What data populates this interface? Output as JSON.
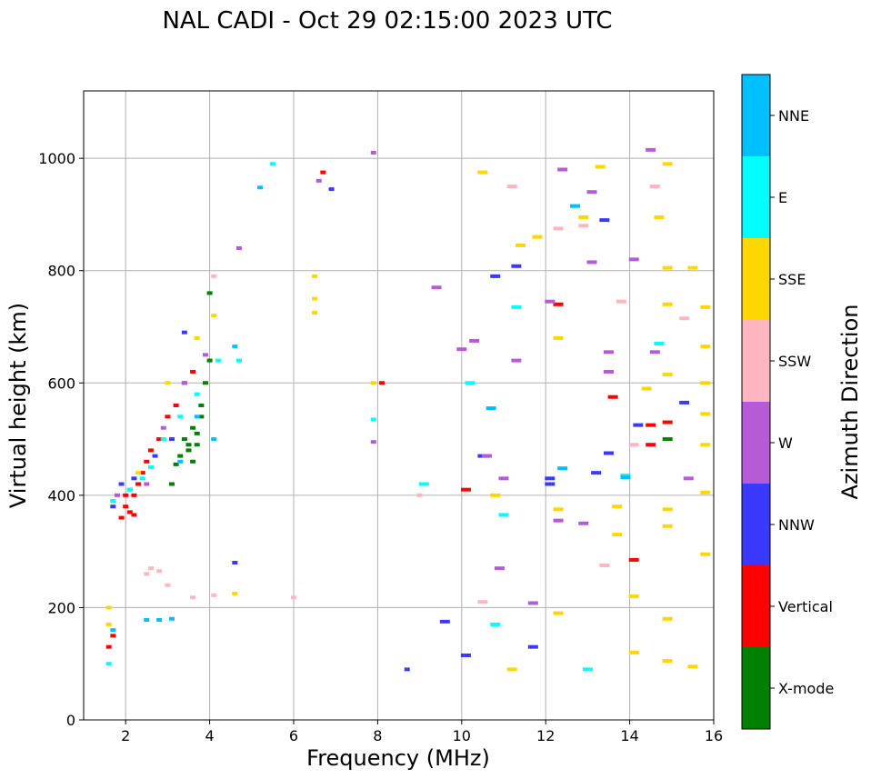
{
  "chart_data": {
    "type": "scatter",
    "title": "NAL CADI - Oct 29 02:15:00 2023 UTC",
    "xlabel": "Frequency (MHz)",
    "ylabel": "Virtual height (km)",
    "xlim": [
      1,
      16
    ],
    "ylim": [
      0,
      1120
    ],
    "xticks": [
      2,
      4,
      6,
      8,
      10,
      12,
      14,
      16
    ],
    "yticks": [
      0,
      200,
      400,
      600,
      800,
      1000
    ],
    "grid": true,
    "colorbar": {
      "label": "Azimuth Direction",
      "categories": [
        {
          "name": "X-mode",
          "color": "#008000"
        },
        {
          "name": "Vertical",
          "color": "#ff0000"
        },
        {
          "name": "NNW",
          "color": "#3a3aff"
        },
        {
          "name": "W",
          "color": "#b65bd6"
        },
        {
          "name": "SSW",
          "color": "#ffb6c1"
        },
        {
          "name": "SSE",
          "color": "#ffd700"
        },
        {
          "name": "E",
          "color": "#00ffff"
        },
        {
          "name": "NNE",
          "color": "#00bfff"
        }
      ]
    },
    "series": [
      {
        "name": "X-mode",
        "points": [
          [
            3.1,
            420
          ],
          [
            3.2,
            455
          ],
          [
            3.3,
            470
          ],
          [
            3.4,
            500
          ],
          [
            3.5,
            480
          ],
          [
            3.6,
            520
          ],
          [
            3.7,
            510
          ],
          [
            3.8,
            560
          ],
          [
            3.9,
            600
          ],
          [
            4.0,
            640
          ],
          [
            4.0,
            760
          ],
          [
            3.8,
            540
          ],
          [
            3.5,
            490
          ],
          [
            3.7,
            490
          ],
          [
            3.6,
            460
          ],
          [
            14.9,
            500
          ]
        ]
      },
      {
        "name": "Vertical",
        "points": [
          [
            1.9,
            360
          ],
          [
            2.0,
            380
          ],
          [
            2.1,
            370
          ],
          [
            2.2,
            400
          ],
          [
            2.3,
            420
          ],
          [
            2.4,
            440
          ],
          [
            2.5,
            460
          ],
          [
            2.6,
            480
          ],
          [
            2.8,
            500
          ],
          [
            3.0,
            540
          ],
          [
            3.2,
            560
          ],
          [
            3.4,
            600
          ],
          [
            3.6,
            620
          ],
          [
            2.0,
            400
          ],
          [
            2.2,
            365
          ],
          [
            1.6,
            130
          ],
          [
            1.7,
            150
          ],
          [
            6.7,
            975
          ],
          [
            8.1,
            600
          ],
          [
            10.1,
            410
          ],
          [
            13.6,
            575
          ],
          [
            14.1,
            285
          ],
          [
            14.5,
            525
          ],
          [
            14.5,
            490
          ],
          [
            14.9,
            530
          ],
          [
            12.3,
            740
          ]
        ]
      },
      {
        "name": "NNW",
        "points": [
          [
            1.7,
            380
          ],
          [
            1.9,
            420
          ],
          [
            2.2,
            430
          ],
          [
            2.7,
            470
          ],
          [
            3.1,
            500
          ],
          [
            3.4,
            690
          ],
          [
            4.6,
            280
          ],
          [
            6.9,
            945
          ],
          [
            8.7,
            90
          ],
          [
            9.6,
            175
          ],
          [
            10.1,
            115
          ],
          [
            10.5,
            470
          ],
          [
            10.8,
            790
          ],
          [
            11.3,
            808
          ],
          [
            11.7,
            130
          ],
          [
            12.1,
            420
          ],
          [
            12.1,
            430
          ],
          [
            13.2,
            440
          ],
          [
            13.4,
            890
          ],
          [
            13.5,
            475
          ],
          [
            14.2,
            525
          ],
          [
            15.3,
            565
          ]
        ]
      },
      {
        "name": "W",
        "points": [
          [
            1.8,
            400
          ],
          [
            2.1,
            410
          ],
          [
            2.5,
            420
          ],
          [
            2.9,
            520
          ],
          [
            3.4,
            600
          ],
          [
            3.9,
            650
          ],
          [
            4.7,
            840
          ],
          [
            6.6,
            960
          ],
          [
            7.9,
            1010
          ],
          [
            7.9,
            495
          ],
          [
            9.4,
            770
          ],
          [
            10.0,
            660
          ],
          [
            10.3,
            675
          ],
          [
            10.6,
            470
          ],
          [
            10.9,
            270
          ],
          [
            11.0,
            430
          ],
          [
            11.3,
            640
          ],
          [
            11.7,
            208
          ],
          [
            12.1,
            745
          ],
          [
            12.3,
            355
          ],
          [
            12.4,
            980
          ],
          [
            12.9,
            350
          ],
          [
            13.1,
            940
          ],
          [
            13.1,
            815
          ],
          [
            13.5,
            655
          ],
          [
            13.5,
            620
          ],
          [
            13.9,
            435
          ],
          [
            14.1,
            820
          ],
          [
            14.5,
            1015
          ],
          [
            14.6,
            655
          ],
          [
            15.4,
            430
          ]
        ]
      },
      {
        "name": "SSW",
        "points": [
          [
            2.5,
            260
          ],
          [
            2.6,
            270
          ],
          [
            2.8,
            265
          ],
          [
            3.0,
            240
          ],
          [
            3.6,
            218
          ],
          [
            4.1,
            222
          ],
          [
            4.1,
            790
          ],
          [
            6.0,
            218
          ],
          [
            9.0,
            400
          ],
          [
            10.5,
            210
          ],
          [
            11.2,
            950
          ],
          [
            12.3,
            875
          ],
          [
            12.9,
            880
          ],
          [
            13.4,
            275
          ],
          [
            13.8,
            745
          ],
          [
            14.1,
            490
          ],
          [
            14.6,
            950
          ],
          [
            15.3,
            715
          ]
        ]
      },
      {
        "name": "SSE",
        "points": [
          [
            1.6,
            200
          ],
          [
            1.6,
            170
          ],
          [
            2.3,
            440
          ],
          [
            3.0,
            600
          ],
          [
            3.7,
            680
          ],
          [
            4.1,
            720
          ],
          [
            4.6,
            225
          ],
          [
            6.5,
            790
          ],
          [
            6.5,
            750
          ],
          [
            6.5,
            725
          ],
          [
            7.9,
            600
          ],
          [
            10.5,
            975
          ],
          [
            10.8,
            400
          ],
          [
            11.2,
            90
          ],
          [
            11.4,
            845
          ],
          [
            11.8,
            860
          ],
          [
            12.3,
            680
          ],
          [
            12.3,
            375
          ],
          [
            12.3,
            190
          ],
          [
            12.9,
            895
          ],
          [
            13.3,
            985
          ],
          [
            13.7,
            380
          ],
          [
            13.7,
            330
          ],
          [
            14.1,
            120
          ],
          [
            14.1,
            220
          ],
          [
            14.4,
            590
          ],
          [
            14.7,
            895
          ],
          [
            14.9,
            990
          ],
          [
            14.9,
            805
          ],
          [
            14.9,
            740
          ],
          [
            14.9,
            615
          ],
          [
            14.9,
            375
          ],
          [
            14.9,
            345
          ],
          [
            14.9,
            180
          ],
          [
            14.9,
            105
          ],
          [
            15.5,
            805
          ],
          [
            15.5,
            95
          ],
          [
            15.8,
            735
          ],
          [
            15.8,
            665
          ],
          [
            15.8,
            600
          ],
          [
            15.8,
            545
          ],
          [
            15.8,
            490
          ],
          [
            15.8,
            405
          ],
          [
            15.8,
            295
          ]
        ]
      },
      {
        "name": "E",
        "points": [
          [
            1.6,
            100
          ],
          [
            1.7,
            390
          ],
          [
            2.1,
            410
          ],
          [
            2.4,
            430
          ],
          [
            2.6,
            450
          ],
          [
            2.9,
            500
          ],
          [
            3.3,
            540
          ],
          [
            3.7,
            580
          ],
          [
            4.2,
            640
          ],
          [
            4.7,
            640
          ],
          [
            5.5,
            990
          ],
          [
            7.9,
            535
          ],
          [
            9.1,
            420
          ],
          [
            10.2,
            600
          ],
          [
            10.8,
            170
          ],
          [
            11.0,
            365
          ],
          [
            11.3,
            735
          ],
          [
            12.7,
            915
          ],
          [
            13.0,
            90
          ],
          [
            13.9,
            435
          ],
          [
            14.7,
            670
          ]
        ]
      },
      {
        "name": "NNE",
        "points": [
          [
            1.7,
            160
          ],
          [
            2.5,
            178
          ],
          [
            2.8,
            178
          ],
          [
            3.1,
            180
          ],
          [
            3.3,
            460
          ],
          [
            3.7,
            540
          ],
          [
            4.1,
            500
          ],
          [
            4.6,
            665
          ],
          [
            5.2,
            948
          ],
          [
            10.7,
            555
          ],
          [
            12.4,
            448
          ],
          [
            12.7,
            915
          ],
          [
            13.9,
            432
          ]
        ]
      }
    ]
  }
}
